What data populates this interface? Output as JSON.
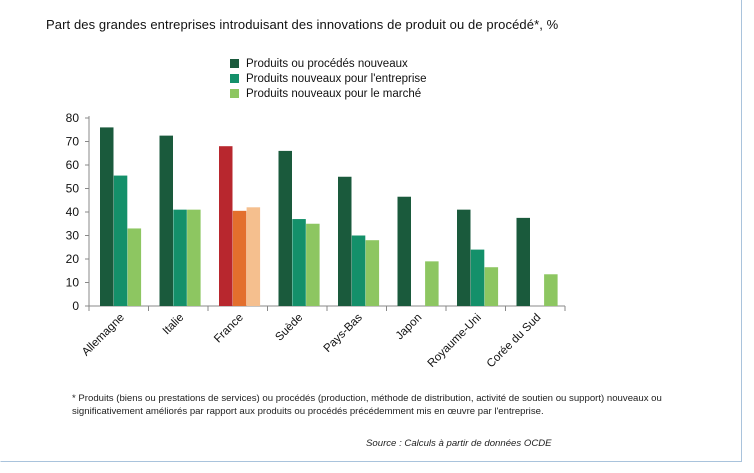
{
  "chart_data": {
    "type": "bar",
    "title": "Part des grandes entreprises introduisant des innovations de produit ou de procédé*, %",
    "categories": [
      "Allemagne",
      "Italie",
      "France",
      "Suède",
      "Pays-Bas",
      "Japon",
      "Royaume-Uni",
      "Corée du Sud"
    ],
    "series": [
      {
        "name": "Produits ou procédés nouveaux",
        "color": "#1a5a3c",
        "values": [
          76,
          72.5,
          68,
          66,
          55,
          46.5,
          41,
          37.5
        ]
      },
      {
        "name": "Produits nouveaux pour l'entreprise",
        "color": "#14906a",
        "values": [
          55.5,
          41,
          40.5,
          37,
          30,
          null,
          24,
          null
        ]
      },
      {
        "name": "Produits nouveaux pour le marché",
        "color": "#8dc661",
        "values": [
          33,
          41,
          42,
          35,
          28,
          19,
          16.5,
          13.5
        ]
      }
    ],
    "highlight": {
      "category": "France",
      "colors": [
        "#b8272e",
        "#e36f2d",
        "#f5bf8e"
      ]
    },
    "yticks": [
      0,
      10,
      20,
      30,
      40,
      50,
      60,
      70,
      80
    ],
    "ylim": [
      0,
      80
    ],
    "xlabel": "",
    "ylabel": "",
    "legend_position": "top-center",
    "grid": false
  },
  "footnote": "* Produits (biens ou prestations de services) ou procédés (production, méthode de distribution, activité de soutien ou support)  nouveaux ou significativement améliorés par rapport aux produits ou procédés précédemment mis en œuvre par l'entreprise.",
  "source": "Source : Calculs à partir de données OCDE"
}
